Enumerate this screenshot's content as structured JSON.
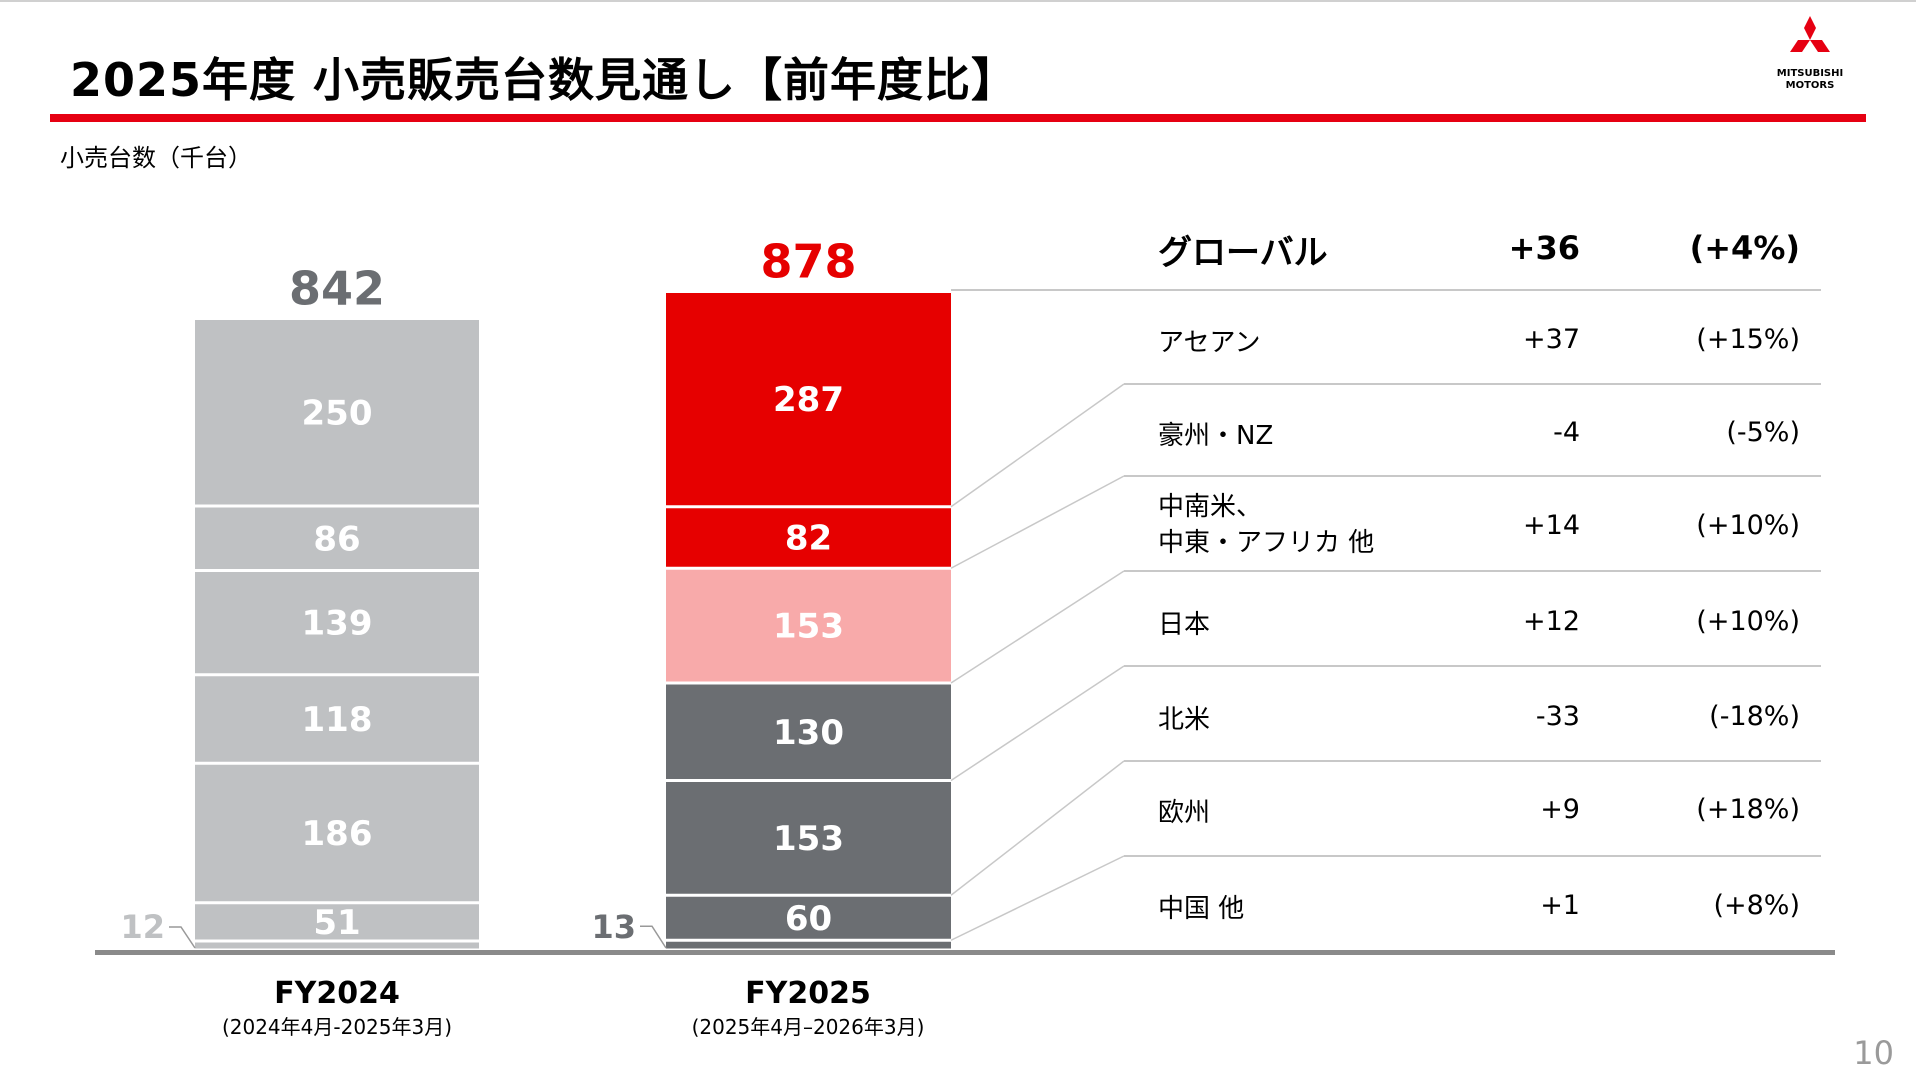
{
  "header": {
    "title": "2025年度 小売販売台数見通し【前年度比】",
    "unit_label": "小売台数（千台）",
    "logo_text": [
      "MITSUBISHI",
      "MOTORS"
    ],
    "page_number": "10"
  },
  "colors": {
    "brand_red": "#e60012",
    "fy2024": "#bfc1c3",
    "red": "#e60000",
    "pink": "#f8aaaa",
    "dark_gray": "#6b6e72"
  },
  "chart_data": {
    "type": "bar",
    "stacked": true,
    "categories": [
      "FY2024",
      "FY2025"
    ],
    "category_sublabels": [
      "(2024年4月-2025年3月)",
      "(2025年4月–2026年3月)"
    ],
    "ylabel": "小売台数（千台）",
    "totals": [
      842,
      878
    ],
    "total_labels": [
      "842",
      "878"
    ],
    "series": [
      {
        "name": "アセアン",
        "values": [
          250,
          287
        ]
      },
      {
        "name": "豪州・NZ",
        "values": [
          86,
          82
        ]
      },
      {
        "name": "中南米、中東・アフリカ 他",
        "values": [
          139,
          153
        ]
      },
      {
        "name": "日本",
        "values": [
          118,
          130
        ]
      },
      {
        "name": "北米",
        "values": [
          186,
          153
        ]
      },
      {
        "name": "欧州",
        "values": [
          51,
          60
        ]
      },
      {
        "name": "中国 他",
        "values": [
          12,
          13
        ]
      }
    ],
    "fy2025_segment_colors": [
      "#e60000",
      "#e60000",
      "#f8aaaa",
      "#6b6e72",
      "#6b6e72",
      "#6b6e72",
      "#6b6e72"
    ]
  },
  "table": {
    "header": {
      "region": "グローバル",
      "diff": "+36",
      "pct": "(+4%)"
    },
    "rows": [
      {
        "region": "アセアン",
        "diff": "+37",
        "pct": "(+15%)"
      },
      {
        "region": "豪州・NZ",
        "diff": "-4",
        "pct": "(-5%)"
      },
      {
        "region": "中南米、\n中東・アフリカ 他",
        "region_l1": "中南米、",
        "region_l2": "中東・アフリカ 他",
        "diff": "+14",
        "pct": "(+10%)"
      },
      {
        "region": "日本",
        "diff": "+12",
        "pct": "(+10%)"
      },
      {
        "region": "北米",
        "diff": "-33",
        "pct": "(-18%)"
      },
      {
        "region": "欧州",
        "diff": "+9",
        "pct": "(+18%)"
      },
      {
        "region": "中国 他",
        "diff": "+1",
        "pct": "(+8%)"
      }
    ]
  }
}
